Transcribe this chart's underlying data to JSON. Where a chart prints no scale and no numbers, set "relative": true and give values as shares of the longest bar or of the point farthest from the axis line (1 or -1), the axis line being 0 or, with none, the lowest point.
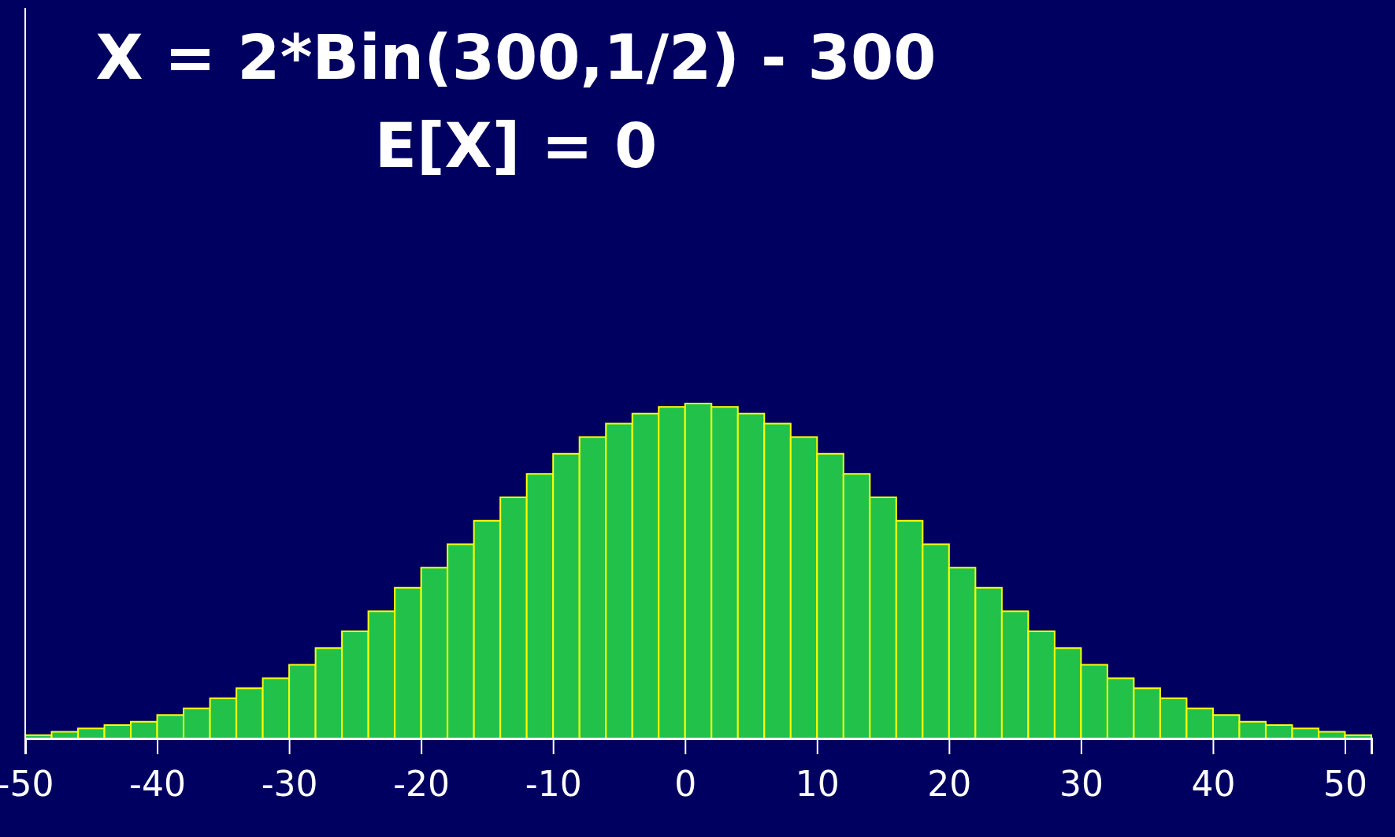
{
  "chart_data": {
    "type": "bar",
    "title": "X = 2*Bin(300,1/2) - 300",
    "subtitle": "E[X] = 0",
    "relative": true,
    "color": "#22c24a",
    "x": [
      -49,
      -47,
      -45,
      -43,
      -41,
      -39,
      -37,
      -35,
      -33,
      -31,
      -29,
      -27,
      -25,
      -23,
      -21,
      -19,
      -17,
      -15,
      -13,
      -11,
      -9,
      -7,
      -5,
      -3,
      -1,
      1,
      3,
      5,
      7,
      9,
      11,
      13,
      15,
      17,
      19,
      21,
      23,
      25,
      27,
      29,
      31,
      33,
      35,
      37,
      39,
      41,
      43,
      45,
      47,
      49,
      51
    ],
    "values": [
      0.01,
      0.02,
      0.03,
      0.04,
      0.05,
      0.07,
      0.09,
      0.12,
      0.15,
      0.18,
      0.22,
      0.27,
      0.32,
      0.38,
      0.45,
      0.51,
      0.58,
      0.65,
      0.72,
      0.79,
      0.85,
      0.9,
      0.94,
      0.97,
      0.99,
      1,
      0.99,
      0.97,
      0.94,
      0.9,
      0.85,
      0.79,
      0.72,
      0.65,
      0.58,
      0.51,
      0.45,
      0.38,
      0.32,
      0.27,
      0.22,
      0.18,
      0.15,
      0.12,
      0.09,
      0.07,
      0.05,
      0.04,
      0.03,
      0.02,
      0.01
    ],
    "xlim": [
      -50,
      52
    ],
    "xticks": [
      -50,
      -40,
      -30,
      -20,
      -10,
      0,
      10,
      20,
      30,
      40,
      50
    ]
  }
}
